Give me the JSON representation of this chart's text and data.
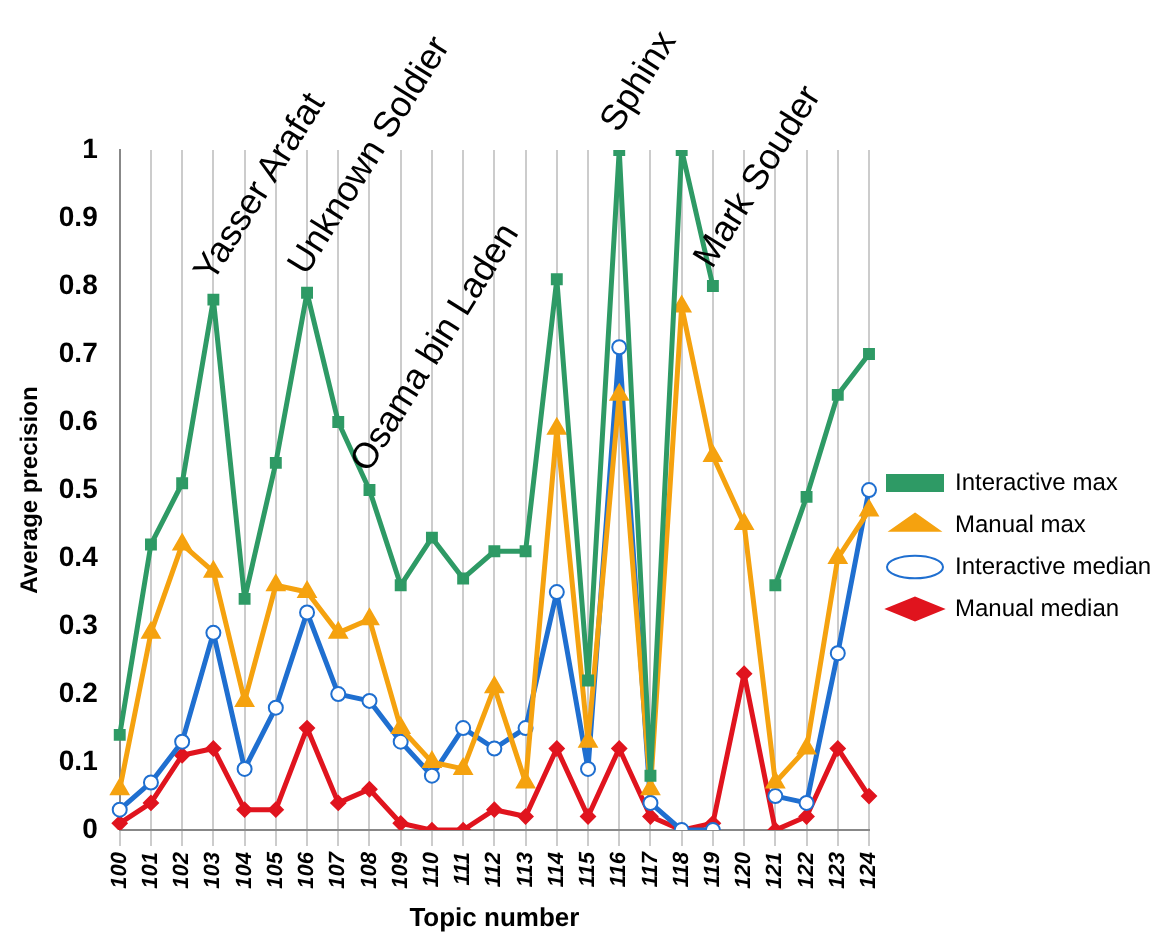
{
  "chart_data": {
    "type": "line",
    "xlabel": "Topic number",
    "ylabel": "Average precision",
    "categories": [
      "100",
      "101",
      "102",
      "103",
      "104",
      "105",
      "106",
      "107",
      "108",
      "109",
      "110",
      "111",
      "112",
      "113",
      "114",
      "115",
      "116",
      "117",
      "118",
      "119",
      "120",
      "121",
      "122",
      "123",
      "124"
    ],
    "series": [
      {
        "name": "Interactive max",
        "color": "#2e9a65",
        "marker": "square",
        "values": [
          0.14,
          0.42,
          0.51,
          0.78,
          0.34,
          0.54,
          0.79,
          0.6,
          0.5,
          0.36,
          0.43,
          0.37,
          0.41,
          0.41,
          0.81,
          0.22,
          1.0,
          0.08,
          1.0,
          0.8,
          null,
          0.36,
          0.49,
          0.64,
          0.7
        ]
      },
      {
        "name": "Manual max",
        "color": "#f5a20f",
        "marker": "triangle",
        "values": [
          0.06,
          0.29,
          0.42,
          0.38,
          0.19,
          0.36,
          0.35,
          0.29,
          0.31,
          0.15,
          0.1,
          0.09,
          0.21,
          0.07,
          0.59,
          0.13,
          0.64,
          0.06,
          0.77,
          0.55,
          0.45,
          0.07,
          0.12,
          0.4,
          0.47
        ]
      },
      {
        "name": "Interactive median",
        "color": "#1f6fd0",
        "marker": "circle",
        "values": [
          0.03,
          0.07,
          0.13,
          0.29,
          0.09,
          0.18,
          0.32,
          0.2,
          0.19,
          0.13,
          0.08,
          0.15,
          0.12,
          0.15,
          0.35,
          0.09,
          0.71,
          0.04,
          0.0,
          0.0,
          null,
          0.05,
          0.04,
          0.26,
          0.5
        ]
      },
      {
        "name": "Manual median",
        "color": "#e0141e",
        "marker": "diamond",
        "values": [
          0.01,
          0.04,
          0.11,
          0.12,
          0.03,
          0.03,
          0.15,
          0.04,
          0.06,
          0.01,
          0.0,
          0.0,
          0.03,
          0.02,
          0.12,
          0.02,
          0.12,
          0.02,
          0.0,
          0.01,
          0.23,
          0.0,
          0.02,
          0.12,
          0.05
        ]
      }
    ],
    "ylim": [
      0,
      1
    ],
    "yticks": [
      0,
      0.1,
      0.2,
      0.3,
      0.4,
      0.5,
      0.6,
      0.7,
      0.8,
      0.9,
      1
    ],
    "grid": "x",
    "legend": "right",
    "line_style": "solid",
    "annotations": [
      {
        "text": "Yasser Arafat",
        "x": "103",
        "y": 0.78
      },
      {
        "text": "Unknown Soldier",
        "x": "106",
        "y": 0.79
      },
      {
        "text": "Osama bin Laden",
        "x": "108",
        "y": 0.5
      },
      {
        "text": "Sphinx",
        "x": "116",
        "y": 1.0
      },
      {
        "text": "Mark Souder",
        "x": "119",
        "y": 0.8
      }
    ]
  }
}
